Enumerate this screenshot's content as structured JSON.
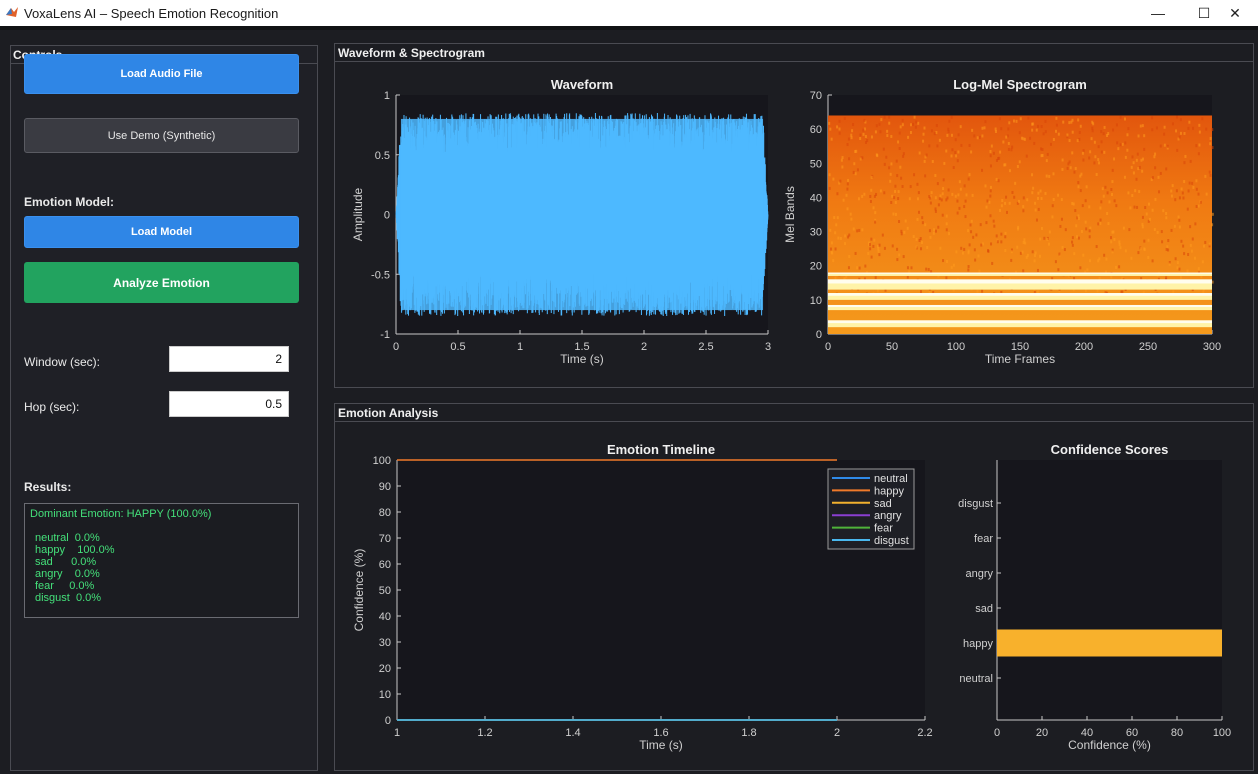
{
  "window": {
    "title": "VoxaLens AI – Speech Emotion Recognition",
    "minimize_glyph": "—",
    "maximize_glyph": "☐",
    "close_glyph": "✕"
  },
  "controls": {
    "panel_title": "Controls",
    "load_audio_label": "Load Audio File",
    "use_demo_label": "Use Demo (Synthetic)",
    "emotion_model_label": "Emotion Model:",
    "load_model_label": "Load Model",
    "analyze_label": "Analyze Emotion",
    "window_label": "Window (sec):",
    "window_value": "2",
    "hop_label": "Hop (sec):",
    "hop_value": "0.5",
    "results_label": "Results:"
  },
  "results": {
    "dominant": "Dominant Emotion: HAPPY (100.0%)",
    "rows": [
      {
        "emotion": "neutral",
        "value": "0.0%",
        "text": "neutral  0.0%"
      },
      {
        "emotion": "happy",
        "value": "100.0%",
        "text": "happy    100.0%"
      },
      {
        "emotion": "sad",
        "value": "0.0%",
        "text": "sad      0.0%"
      },
      {
        "emotion": "angry",
        "value": "0.0%",
        "text": "angry    0.0%"
      },
      {
        "emotion": "fear",
        "value": "0.0%",
        "text": "fear     0.0%"
      },
      {
        "emotion": "disgust",
        "value": "0.0%",
        "text": "disgust  0.0%"
      }
    ]
  },
  "panels": {
    "wave_spec_title": "Waveform & Spectrogram",
    "emotion_title": "Emotion Analysis"
  },
  "colors": {
    "waveform": "#4db8ff",
    "axes_bg": "#16161c",
    "axis_text": "#d0d0d0",
    "neutral": "#2f8ae8",
    "happy": "#f07a2a",
    "sad": "#f2b12e",
    "angry": "#8a3fd1",
    "fear": "#4fb33a",
    "disgust": "#4ab8ee",
    "confidence_bar": "#f8b12c"
  },
  "chart_data": [
    {
      "type": "line",
      "title": "Waveform",
      "xlabel": "Time (s)",
      "ylabel": "Amplitude",
      "xlim": [
        0,
        3
      ],
      "ylim": [
        -1,
        1
      ],
      "x_ticks": [
        "0",
        "0.5",
        "1",
        "1.5",
        "2",
        "2.5",
        "3"
      ],
      "y_ticks": [
        "-1",
        "-0.5",
        "0",
        "0.5",
        "1"
      ],
      "envelope": {
        "upper": 0.85,
        "lower": -0.85
      }
    },
    {
      "type": "heatmap",
      "title": "Log-Mel Spectrogram",
      "xlabel": "Time Frames",
      "ylabel": "Mel Bands",
      "xlim": [
        0,
        300
      ],
      "ylim": [
        0,
        70
      ],
      "data_extent": {
        "x": [
          0,
          300
        ],
        "y": [
          0,
          64
        ]
      },
      "x_ticks": [
        "0",
        "50",
        "100",
        "150",
        "200",
        "250",
        "300"
      ],
      "y_ticks": [
        "0",
        "10",
        "20",
        "30",
        "40",
        "50",
        "60",
        "70"
      ],
      "bright_bands": [
        [
          2,
          4
        ],
        [
          7,
          8.5
        ],
        [
          10,
          12
        ],
        [
          13,
          16
        ],
        [
          17,
          18
        ]
      ]
    },
    {
      "type": "line",
      "title": "Emotion Timeline",
      "xlabel": "Time (s)",
      "ylabel": "Confidence (%)",
      "xlim": [
        1,
        2.2
      ],
      "ylim": [
        0,
        100
      ],
      "x_ticks": [
        "1",
        "1.2",
        "1.4",
        "1.6",
        "1.8",
        "2",
        "2.2"
      ],
      "y_ticks": [
        "0",
        "10",
        "20",
        "30",
        "40",
        "50",
        "60",
        "70",
        "80",
        "90",
        "100"
      ],
      "legend_position": "top-right",
      "x": [
        1,
        1.5,
        2
      ],
      "series": [
        {
          "name": "neutral",
          "values": [
            0,
            0,
            0
          ]
        },
        {
          "name": "happy",
          "values": [
            100,
            100,
            100
          ]
        },
        {
          "name": "sad",
          "values": [
            0,
            0,
            0
          ]
        },
        {
          "name": "angry",
          "values": [
            0,
            0,
            0
          ]
        },
        {
          "name": "fear",
          "values": [
            0,
            0,
            0
          ]
        },
        {
          "name": "disgust",
          "values": [
            0,
            0,
            0
          ]
        }
      ]
    },
    {
      "type": "bar",
      "orientation": "horizontal",
      "title": "Confidence Scores",
      "xlabel": "Confidence (%)",
      "xlim": [
        0,
        100
      ],
      "x_ticks": [
        "0",
        "20",
        "40",
        "60",
        "80",
        "100"
      ],
      "categories": [
        "neutral",
        "happy",
        "sad",
        "angry",
        "fear",
        "disgust"
      ],
      "values": [
        0,
        100,
        0,
        0,
        0,
        0
      ]
    }
  ]
}
